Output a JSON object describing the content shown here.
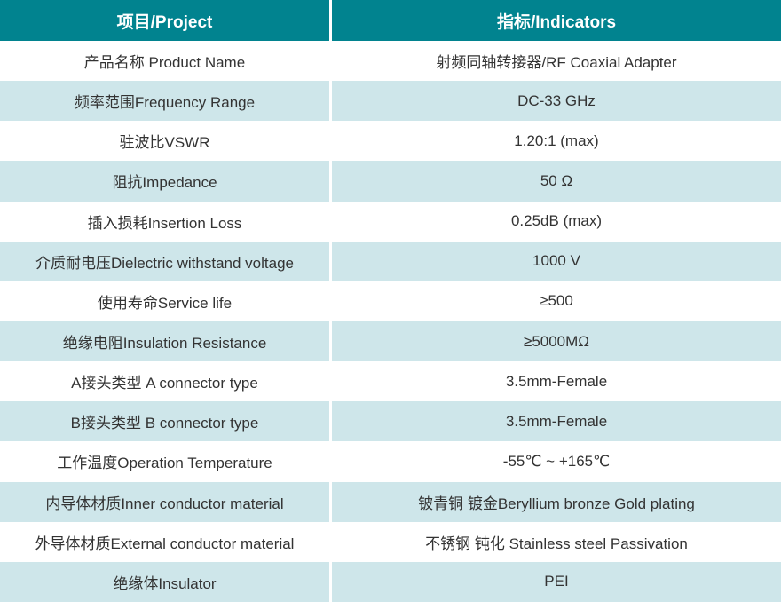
{
  "colors": {
    "header_bg": "#01838F",
    "header_text": "#FFFFFF",
    "row_alt_bg": "#CEE6EA",
    "row_bg": "#FFFFFF",
    "body_text": "#333333",
    "divider": "#FFFFFF"
  },
  "table": {
    "header": {
      "project": "项目/Project",
      "indicator": "指标/Indicators"
    },
    "rows": [
      {
        "project": "产品名称 Product Name",
        "indicator": "射频同轴转接器/RF Coaxial Adapter"
      },
      {
        "project": "频率范围Frequency Range",
        "indicator": "DC-33 GHz"
      },
      {
        "project": "驻波比VSWR",
        "indicator": "1.20:1 (max)"
      },
      {
        "project": "阻抗Impedance",
        "indicator": "50 Ω"
      },
      {
        "project": "插入损耗Insertion Loss",
        "indicator": "0.25dB (max)"
      },
      {
        "project": "介质耐电压Dielectric withstand voltage",
        "indicator": "1000 V"
      },
      {
        "project": "使用寿命Service life",
        "indicator": "≥500"
      },
      {
        "project": "绝缘电阻Insulation Resistance",
        "indicator": "≥5000MΩ"
      },
      {
        "project": "A接头类型 A connector type",
        "indicator": "3.5mm-Female"
      },
      {
        "project": "B接头类型 B connector type",
        "indicator": "3.5mm-Female"
      },
      {
        "project": "工作温度Operation Temperature",
        "indicator": "-55℃ ~ +165℃"
      },
      {
        "project": "内导体材质Inner conductor material",
        "indicator": "铍青铜 镀金Beryllium bronze Gold plating"
      },
      {
        "project": "外导体材质External conductor material",
        "indicator": "不锈钢 钝化 Stainless steel Passivation"
      },
      {
        "project": "绝缘体Insulator",
        "indicator": "PEI"
      }
    ]
  }
}
